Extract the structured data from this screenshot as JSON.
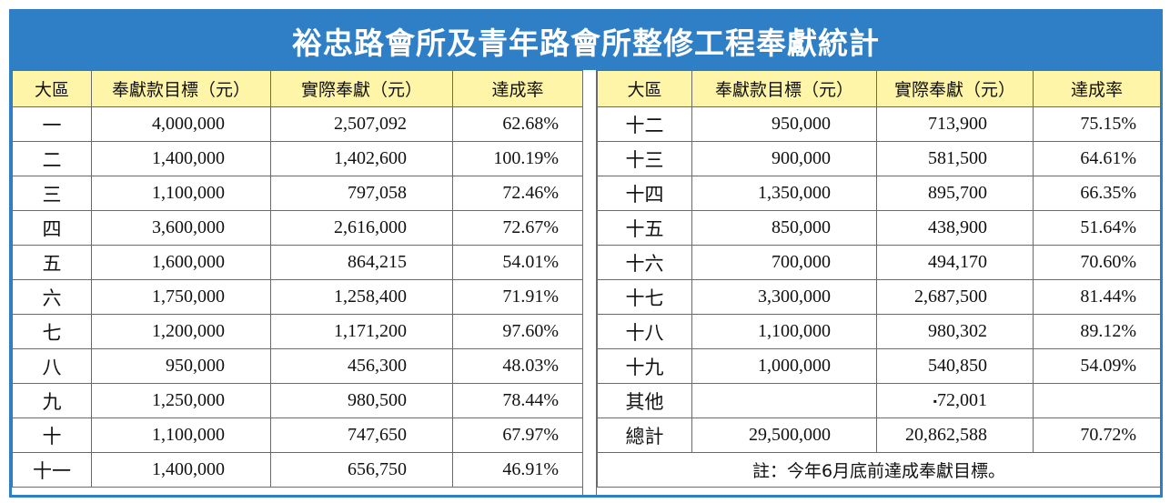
{
  "title": "裕忠路會所及青年路會所整修工程奉獻統計",
  "headers": [
    "大區",
    "奉獻款目標（元）",
    "實際奉獻（元）",
    "達成率"
  ],
  "left_rows": [
    {
      "district": "一",
      "target": "4,000,000",
      "actual": "2,507,092",
      "rate": "62.68%"
    },
    {
      "district": "二",
      "target": "1,400,000",
      "actual": "1,402,600",
      "rate": "100.19%"
    },
    {
      "district": "三",
      "target": "1,100,000",
      "actual": "797,058",
      "rate": "72.46%"
    },
    {
      "district": "四",
      "target": "3,600,000",
      "actual": "2,616,000",
      "rate": "72.67%"
    },
    {
      "district": "五",
      "target": "1,600,000",
      "actual": "864,215",
      "rate": "54.01%"
    },
    {
      "district": "六",
      "target": "1,750,000",
      "actual": "1,258,400",
      "rate": "71.91%"
    },
    {
      "district": "七",
      "target": "1,200,000",
      "actual": "1,171,200",
      "rate": "97.60%"
    },
    {
      "district": "八",
      "target": "950,000",
      "actual": "456,300",
      "rate": "48.03%"
    },
    {
      "district": "九",
      "target": "1,250,000",
      "actual": "980,500",
      "rate": "78.44%"
    },
    {
      "district": "十",
      "target": "1,100,000",
      "actual": "747,650",
      "rate": "67.97%"
    },
    {
      "district": "十一",
      "target": "1,400,000",
      "actual": "656,750",
      "rate": "46.91%"
    }
  ],
  "right_rows": [
    {
      "district": "十二",
      "target": "950,000",
      "actual": "713,900",
      "rate": "75.15%"
    },
    {
      "district": "十三",
      "target": "900,000",
      "actual": "581,500",
      "rate": "64.61%"
    },
    {
      "district": "十四",
      "target": "1,350,000",
      "actual": "895,700",
      "rate": "66.35%"
    },
    {
      "district": "十五",
      "target": "850,000",
      "actual": "438,900",
      "rate": "51.64%"
    },
    {
      "district": "十六",
      "target": "700,000",
      "actual": "494,170",
      "rate": "70.60%"
    },
    {
      "district": "十七",
      "target": "3,300,000",
      "actual": "2,687,500",
      "rate": "81.44%"
    },
    {
      "district": "十八",
      "target": "1,100,000",
      "actual": "980,302",
      "rate": "89.12%"
    },
    {
      "district": "十九",
      "target": "1,000,000",
      "actual": "540,850",
      "rate": "54.09%"
    },
    {
      "district": "其他",
      "target": "",
      "actual": "72,001",
      "actual_prefix": "▪",
      "rate": ""
    },
    {
      "district": "總計",
      "target": "29,500,000",
      "actual": "20,862,588",
      "rate": "70.72%"
    }
  ],
  "note": "註：今年6月底前達成奉獻目標。",
  "colors": {
    "title_bg": "#2f7fc6",
    "header_bg": "#fff5a8",
    "border": "#6a6a6a"
  }
}
